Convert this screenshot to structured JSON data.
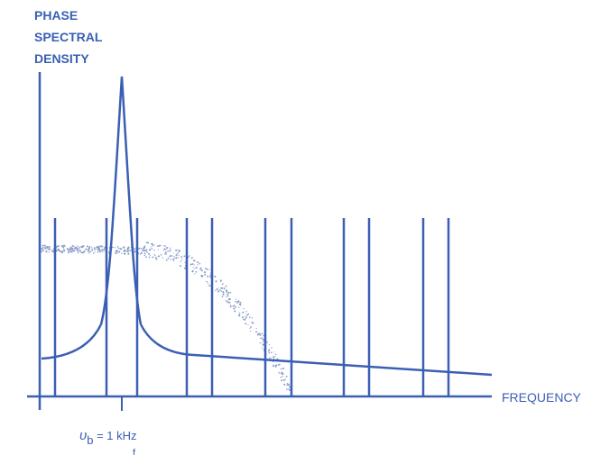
{
  "title_lines": [
    "PHASE",
    "SPECTRAL",
    "DENSITY"
  ],
  "x_axis_label": "FREQUENCY",
  "marker": {
    "symbol": "υ",
    "subscript": "b",
    "rest": " = 1 kHz",
    "stray_mark": "f"
  },
  "colors": {
    "line": "#3a5fb4",
    "dots": "#8a9ac8",
    "background": "#ffffff"
  }
}
